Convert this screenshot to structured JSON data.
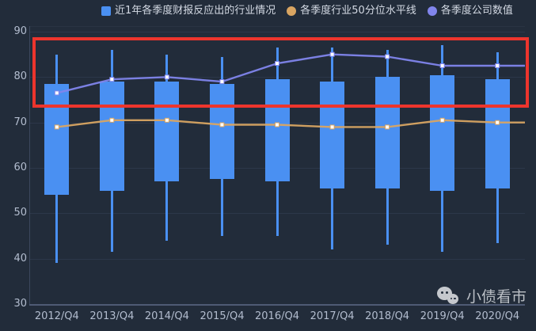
{
  "legend": {
    "items": [
      {
        "label": "近1年各季度财报反应出的行业情况",
        "symbol": "square",
        "color": "#4a90f2"
      },
      {
        "label": "各季度行业50分位水平线",
        "symbol": "circle",
        "color": "#d9a562"
      },
      {
        "label": "各季度公司数值",
        "symbol": "circle",
        "color": "#8185ec"
      }
    ]
  },
  "watermark": {
    "text": "小债看市",
    "icon": "wechat-bubbles-icon"
  },
  "colors": {
    "background": "#222c3a",
    "candlestick": "#4a90f2",
    "median_line": "#d9a562",
    "company_line": "#8185ec",
    "highlight_rect": "#ed352d",
    "axis_label": "#b3bdcf",
    "gridline": "#2c3749"
  },
  "chart_data": {
    "type": "candlestick",
    "title": "",
    "xlabel": "",
    "ylabel": "",
    "categories": [
      "2012/Q4",
      "2013/Q4",
      "2014/Q4",
      "2015/Q4",
      "2016/Q4",
      "2017/Q4",
      "2018/Q4",
      "2019/Q4",
      "2020/Q4"
    ],
    "ylim": [
      30,
      90
    ],
    "y_ticks": [
      90,
      80,
      70,
      60,
      50,
      40,
      30
    ],
    "grid": "horizontal-only",
    "legend_position": "top-center",
    "series": [
      {
        "name": "近1年各季度财报反应出的行业情况",
        "type": "candlestick",
        "color": "#4a90f2",
        "boxes": [
          {
            "low": 39,
            "q1": 54,
            "q3": 78.5,
            "high": 85
          },
          {
            "low": 41.5,
            "q1": 55,
            "q3": 79,
            "high": 86
          },
          {
            "low": 44,
            "q1": 57,
            "q3": 79,
            "high": 85
          },
          {
            "low": 45,
            "q1": 57.5,
            "q3": 78.5,
            "high": 84.5
          },
          {
            "low": 45,
            "q1": 57,
            "q3": 79.5,
            "high": 86.5
          },
          {
            "low": 42,
            "q1": 55.5,
            "q3": 79,
            "high": 86.5
          },
          {
            "low": 43,
            "q1": 55.5,
            "q3": 80,
            "high": 86
          },
          {
            "low": 41.5,
            "q1": 55,
            "q3": 80.5,
            "high": 87
          },
          {
            "low": 43.5,
            "q1": 55.5,
            "q3": 79.5,
            "high": 85.5
          }
        ]
      },
      {
        "name": "各季度行业50分位水平线",
        "type": "line",
        "color": "#d9a562",
        "values": [
          69,
          70.5,
          70.5,
          69.5,
          69.5,
          69,
          69,
          70.5,
          70
        ],
        "extends_to_right_edge": true
      },
      {
        "name": "各季度公司数值",
        "type": "line",
        "color": "#8185ec",
        "values": [
          76.5,
          79.5,
          80,
          79,
          83,
          85,
          84.5,
          82.5,
          82.5
        ],
        "extends_to_right_edge": true
      }
    ],
    "annotation": {
      "shape": "rectangle",
      "color": "#ed352d",
      "value_range": [
        73.3,
        88.8
      ],
      "note": "red highlight box over the upper band of all bars"
    }
  }
}
